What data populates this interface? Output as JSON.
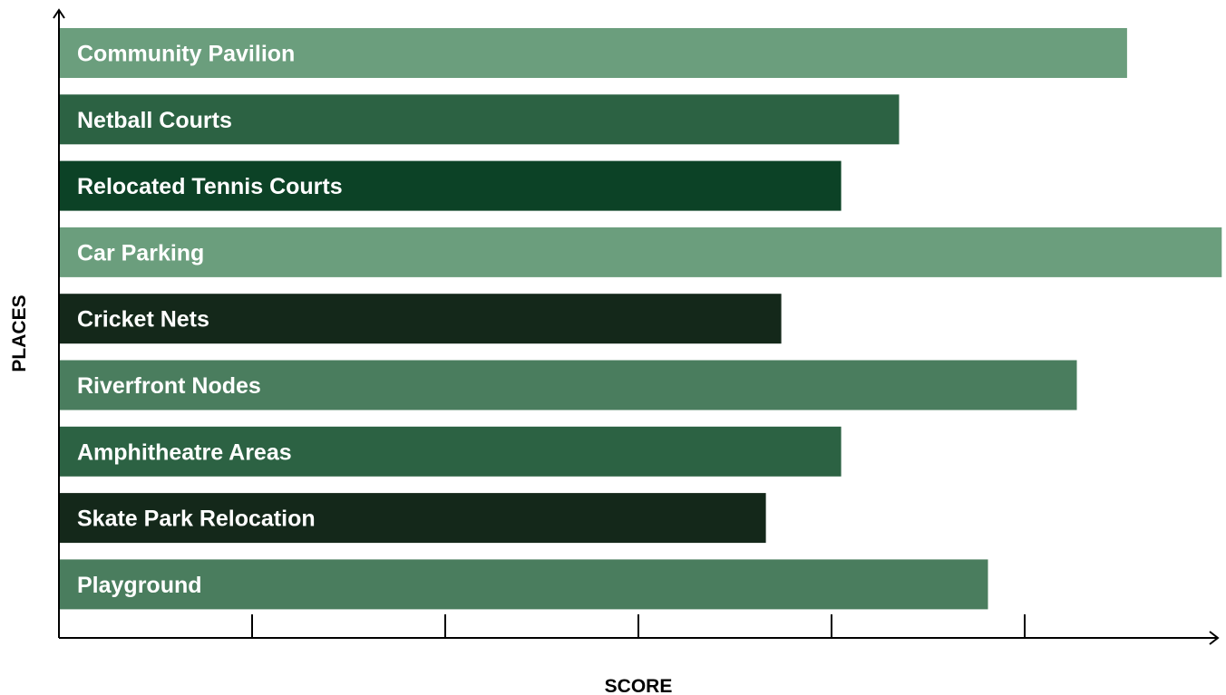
{
  "chart_data": {
    "type": "bar",
    "orientation": "horizontal",
    "categories": [
      "Community Pavilion",
      "Netball Courts",
      "Relocated Tennis Courts",
      "Car Parking",
      "Cricket Nets",
      "Riverfront Nodes",
      "Amphitheatre Areas",
      "Skate Park Relocation",
      "Playground"
    ],
    "values": [
      5.53,
      4.35,
      4.05,
      6.02,
      3.74,
      5.27,
      4.05,
      3.66,
      4.81
    ],
    "colors": [
      "#6b9e7d",
      "#2c6243",
      "#0c4226",
      "#6b9e7d",
      "#14281a",
      "#4a7d5e",
      "#2c6243",
      "#14281a",
      "#4a7d5e"
    ],
    "xlabel": "SCORE",
    "ylabel": "PLACES",
    "xlim": [
      0,
      6
    ],
    "xticks": [
      1,
      2,
      3,
      4,
      5
    ],
    "tick_labels_shown": false,
    "grid": false,
    "legend": "none"
  }
}
